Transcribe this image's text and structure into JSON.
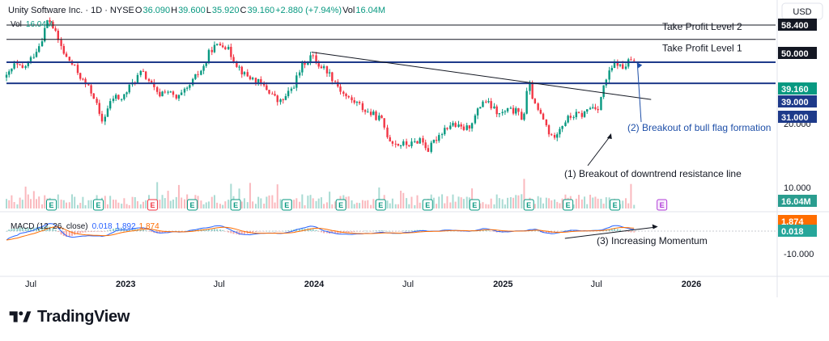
{
  "header": {
    "symbol": "Unity Software Inc. · 1D · NYSE",
    "o_label": "O",
    "o_value": "36.090",
    "h_label": "H",
    "h_value": "39.600",
    "l_label": "L",
    "l_value": "35.920",
    "c_label": "C",
    "c_value": "39.160",
    "change": "+2.880 (+7.94%)",
    "vol_label": "Vol",
    "vol_value": "16.04M",
    "currency": "USD"
  },
  "vol_legend": {
    "label": "Vol",
    "value": "16.04M"
  },
  "macd_legend": {
    "label": "MACD (12, 26, close)",
    "v1": "0.018",
    "v2": "1.892",
    "v3": "1.874"
  },
  "brand": "TradingView",
  "colors": {
    "up": "#089981",
    "down": "#f23645",
    "level": "#1e3a8a",
    "line": "#131722",
    "macd": "#2962ff",
    "signal": "#ff6d00",
    "annotation_blue": "#1e4fa8",
    "earnings": "#089981",
    "earnings_red": "#f23645",
    "earnings_future": "#b13cd8"
  },
  "chart_data": {
    "type": "candlestick",
    "title": "Unity Software Inc. · 1D · NYSE",
    "price_axis": {
      "ticks": [
        {
          "value": 20,
          "label": "20.000"
        },
        {
          "value": 10,
          "label": "10.000"
        },
        {
          "value": -10,
          "label": "-10.000",
          "pane": "macd"
        }
      ],
      "badges": [
        {
          "value": 58.4,
          "label": "58.400",
          "style": "dark"
        },
        {
          "value": 50.0,
          "label": "50.000",
          "style": "dark"
        },
        {
          "value": 39.16,
          "label": "39.160",
          "style": "green"
        },
        {
          "value": 39.0,
          "label": "39.000",
          "style": "navy"
        },
        {
          "value": 31.0,
          "label": "31.000",
          "style": "navy"
        },
        {
          "value": 16.04,
          "label": "16.04M",
          "style": "volume"
        },
        {
          "value": 1.874,
          "label": "1.874",
          "style": "orange"
        },
        {
          "value": 0.018,
          "label": "0.018",
          "style": "macdgreen"
        }
      ]
    },
    "time_axis": [
      "Jul",
      "2023",
      "Jul",
      "2024",
      "Jul",
      "2025",
      "Jul",
      "2026"
    ],
    "time_axis_dates": [
      "2022-07-01",
      "2023-01-01",
      "2023-07-01",
      "2024-01-01",
      "2024-07-01",
      "2025-01-01",
      "2025-07-01",
      "2026-01-01"
    ],
    "horizontal_levels": [
      {
        "value": 58.4,
        "label": "",
        "color": "#131722"
      },
      {
        "value": 50.0,
        "label": "Take Profit Level 1",
        "color": "#131722"
      },
      {
        "value": 39.0,
        "label": "",
        "color": "#1e3a8a"
      },
      {
        "value": 31.0,
        "label": "",
        "color": "#1e3a8a"
      }
    ],
    "extra_labels": [
      {
        "text": "Take Profit Level 2",
        "value": 56
      }
    ],
    "trendline": {
      "from": {
        "date": "2023-12-27",
        "price": 43.5
      },
      "to": {
        "date": "2025-10-15",
        "price": 26
      }
    },
    "price_series": [
      [
        "2022-05-15",
        33
      ],
      [
        "2022-06-01",
        38
      ],
      [
        "2022-06-15",
        36
      ],
      [
        "2022-07-01",
        40
      ],
      [
        "2022-07-20",
        48
      ],
      [
        "2022-08-05",
        63
      ],
      [
        "2022-08-20",
        52
      ],
      [
        "2022-09-05",
        42
      ],
      [
        "2022-09-20",
        38
      ],
      [
        "2022-10-10",
        32
      ],
      [
        "2022-11-01",
        27
      ],
      [
        "2022-11-15",
        20
      ],
      [
        "2022-12-10",
        27
      ],
      [
        "2022-12-25",
        26
      ],
      [
        "2023-01-10",
        30
      ],
      [
        "2023-02-01",
        35
      ],
      [
        "2023-02-15",
        32
      ],
      [
        "2023-03-05",
        27
      ],
      [
        "2023-03-20",
        29
      ],
      [
        "2023-04-10",
        26
      ],
      [
        "2023-05-01",
        29
      ],
      [
        "2023-05-20",
        34
      ],
      [
        "2023-06-05",
        38
      ],
      [
        "2023-06-15",
        45
      ],
      [
        "2023-07-01",
        47
      ],
      [
        "2023-07-10",
        48
      ],
      [
        "2023-07-20",
        44
      ],
      [
        "2023-08-05",
        38
      ],
      [
        "2023-08-20",
        34
      ],
      [
        "2023-09-10",
        32
      ],
      [
        "2023-09-25",
        30
      ],
      [
        "2023-10-10",
        28
      ],
      [
        "2023-10-25",
        25
      ],
      [
        "2023-11-10",
        27
      ],
      [
        "2023-11-25",
        31
      ],
      [
        "2023-12-10",
        38
      ],
      [
        "2023-12-27",
        42
      ],
      [
        "2024-01-10",
        38
      ],
      [
        "2024-01-25",
        36
      ],
      [
        "2024-02-10",
        32
      ],
      [
        "2024-02-25",
        28
      ],
      [
        "2024-03-10",
        26
      ],
      [
        "2024-03-25",
        25
      ],
      [
        "2024-04-10",
        23
      ],
      [
        "2024-04-25",
        22
      ],
      [
        "2024-05-10",
        21
      ],
      [
        "2024-05-25",
        17
      ],
      [
        "2024-06-10",
        16
      ],
      [
        "2024-06-25",
        16
      ],
      [
        "2024-07-10",
        16
      ],
      [
        "2024-07-25",
        17
      ],
      [
        "2024-08-10",
        15
      ],
      [
        "2024-08-25",
        17
      ],
      [
        "2024-09-10",
        19
      ],
      [
        "2024-09-25",
        20
      ],
      [
        "2024-10-10",
        19
      ],
      [
        "2024-10-25",
        19
      ],
      [
        "2024-11-10",
        22
      ],
      [
        "2024-11-25",
        26
      ],
      [
        "2024-12-10",
        24
      ],
      [
        "2024-12-25",
        22
      ],
      [
        "2025-01-10",
        23
      ],
      [
        "2025-01-25",
        23
      ],
      [
        "2025-02-10",
        21
      ],
      [
        "2025-02-20",
        31
      ],
      [
        "2025-03-05",
        24
      ],
      [
        "2025-03-20",
        21
      ],
      [
        "2025-04-05",
        17
      ],
      [
        "2025-04-20",
        19
      ],
      [
        "2025-05-05",
        21
      ],
      [
        "2025-05-20",
        22
      ],
      [
        "2025-06-05",
        22
      ],
      [
        "2025-06-20",
        24
      ],
      [
        "2025-07-05",
        24
      ],
      [
        "2025-07-20",
        32
      ],
      [
        "2025-07-30",
        36
      ],
      [
        "2025-08-10",
        39
      ],
      [
        "2025-08-20",
        36
      ],
      [
        "2025-08-28",
        38
      ],
      [
        "2025-09-05",
        40
      ],
      [
        "2025-09-12",
        39.16
      ]
    ],
    "earnings_markers": [
      {
        "date": "2022-08-10",
        "label": "E",
        "color": "#089981"
      },
      {
        "date": "2022-11-09",
        "label": "E",
        "color": "#089981"
      },
      {
        "date": "2023-02-22",
        "label": "E",
        "color": "#f23645"
      },
      {
        "date": "2023-05-10",
        "label": "E",
        "color": "#089981"
      },
      {
        "date": "2023-08-02",
        "label": "E",
        "color": "#089981"
      },
      {
        "date": "2023-11-09",
        "label": "E",
        "color": "#089981"
      },
      {
        "date": "2024-02-22",
        "label": "E",
        "color": "#089981"
      },
      {
        "date": "2024-05-09",
        "label": "E",
        "color": "#089981"
      },
      {
        "date": "2024-08-08",
        "label": "E",
        "color": "#089981"
      },
      {
        "date": "2024-11-07",
        "label": "E",
        "color": "#089981"
      },
      {
        "date": "2025-02-20",
        "label": "E",
        "color": "#089981"
      },
      {
        "date": "2025-05-07",
        "label": "E",
        "color": "#089981"
      },
      {
        "date": "2025-08-06",
        "label": "E",
        "color": "#089981"
      },
      {
        "date": "2025-11-05",
        "label": "E",
        "color": "#b13cd8",
        "future": true
      }
    ],
    "annotations": [
      {
        "text": "(1) Breakout of downtrend resistance line",
        "color": "#131722",
        "target_date": "2025-07-20",
        "target_price": 25.5
      },
      {
        "text": "(2) Breakout of bull flag formation",
        "color": "#1e4fa8",
        "target_date": "2025-09-12",
        "target_price": 39.5
      },
      {
        "text": "(3) Increasing Momentum",
        "color": "#131722"
      }
    ],
    "macd": {
      "macd_value": 1.892,
      "signal_value": 1.874,
      "histogram_value": 0.018,
      "ticks": [
        "-10.000"
      ],
      "momentum_line": {
        "from": "2025-05-01",
        "to": "2025-10-25"
      }
    },
    "volume_last": "16.04M"
  }
}
